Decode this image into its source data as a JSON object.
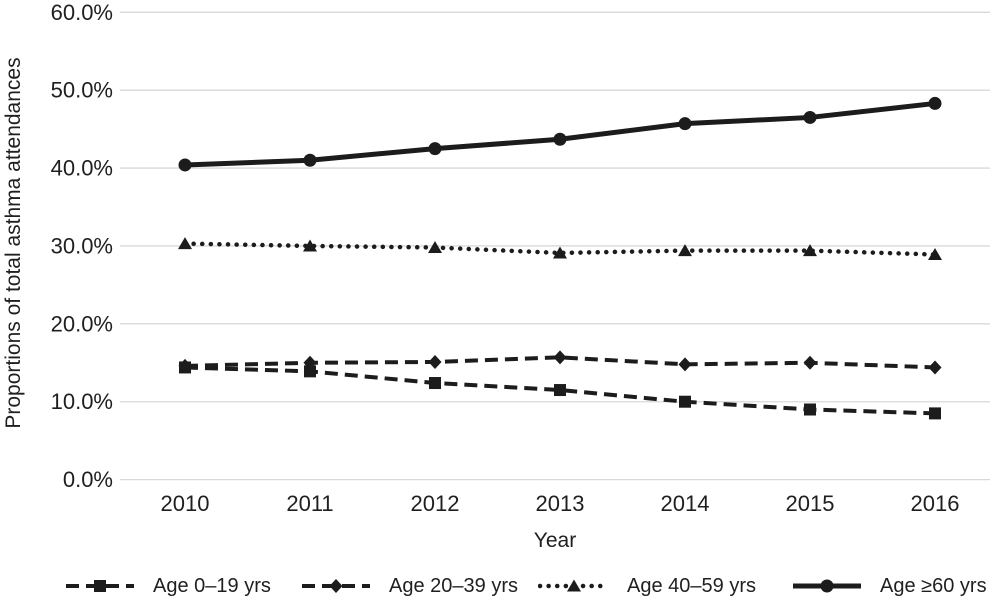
{
  "figure": {
    "background": "#ffffff",
    "text_color": "#1f1f1f",
    "line_color": "#1c1c1c",
    "gridline_color": "#d9d9d9"
  },
  "chart_data": {
    "type": "line",
    "title": "",
    "xlabel": "Year",
    "ylabel": "Proportions of total asthma attendances",
    "categories": [
      "2010",
      "2011",
      "2012",
      "2013",
      "2014",
      "2015",
      "2016"
    ],
    "y_ticks": [
      "0.0%",
      "10.0%",
      "20.0%",
      "30.0%",
      "40.0%",
      "50.0%",
      "60.0%"
    ],
    "ylim": [
      0,
      60
    ],
    "y_tick_step": 10,
    "grid": "horizontal",
    "legend_position": "bottom",
    "series": [
      {
        "name": "Age 0–19 yrs",
        "marker": "square",
        "line_style": "dashed",
        "values": [
          14.4,
          13.9,
          12.4,
          11.5,
          10.0,
          9.0,
          8.5
        ]
      },
      {
        "name": "Age 20–39 yrs",
        "marker": "diamond",
        "line_style": "dashed",
        "values": [
          14.6,
          15.0,
          15.1,
          15.7,
          14.8,
          15.0,
          14.4
        ]
      },
      {
        "name": "Age 40–59 yrs",
        "marker": "triangle",
        "line_style": "dotted",
        "values": [
          30.3,
          30.0,
          29.8,
          29.1,
          29.4,
          29.4,
          28.9
        ]
      },
      {
        "name": "Age ≥60 yrs",
        "marker": "circle",
        "line_style": "solid",
        "values": [
          40.4,
          41.0,
          42.5,
          43.7,
          45.7,
          46.5,
          48.3
        ]
      }
    ]
  }
}
